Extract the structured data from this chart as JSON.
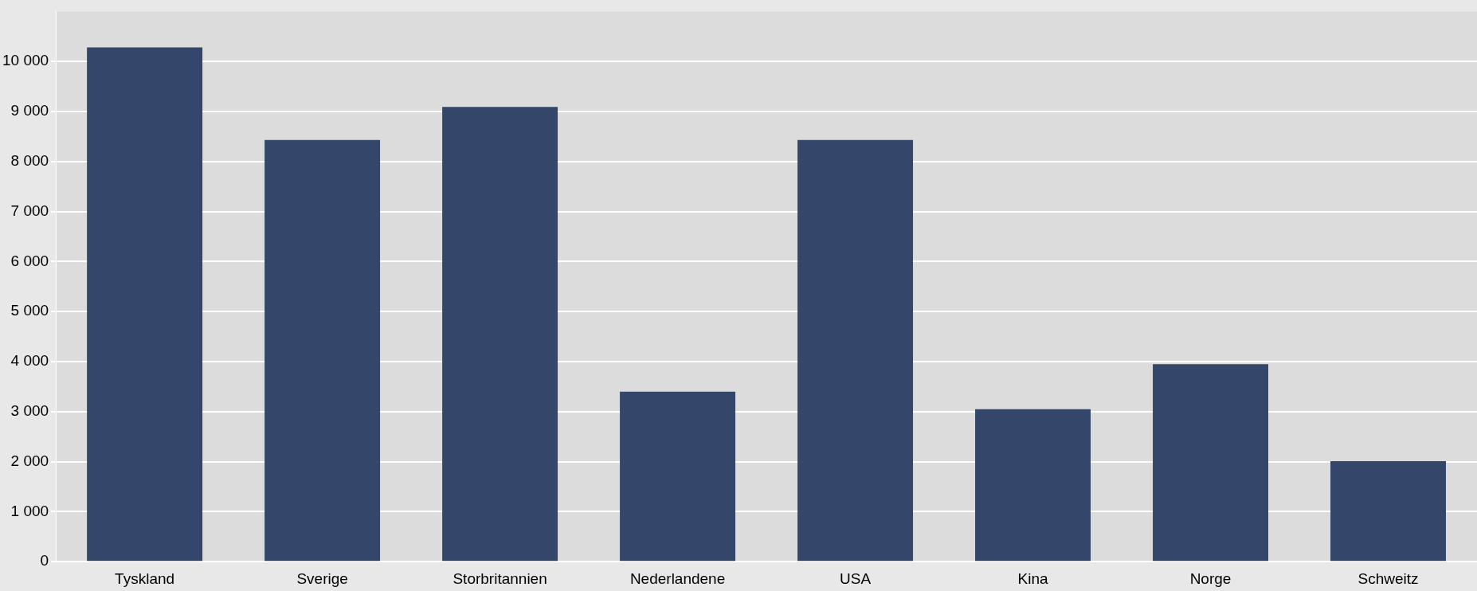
{
  "chart_data": {
    "type": "bar",
    "categories": [
      "Tyskland",
      "Sverige",
      "Storbritannien",
      "Nederlandene",
      "USA",
      "Kina",
      "Norge",
      "Schweitz"
    ],
    "values": [
      10280,
      8430,
      9090,
      3400,
      8430,
      3050,
      3950,
      2010
    ],
    "color": "#34466a",
    "ylim": [
      0,
      11000
    ],
    "yticks": [
      {
        "value": 0,
        "label": "0"
      },
      {
        "value": 1000,
        "label": "1 000"
      },
      {
        "value": 2000,
        "label": "2 000"
      },
      {
        "value": 3000,
        "label": "3 000"
      },
      {
        "value": 4000,
        "label": "4 000"
      },
      {
        "value": 5000,
        "label": "5 000"
      },
      {
        "value": 6000,
        "label": "6 000"
      },
      {
        "value": 7000,
        "label": "7 000"
      },
      {
        "value": 8000,
        "label": "8 000"
      },
      {
        "value": 9000,
        "label": "9 000"
      },
      {
        "value": 10000,
        "label": "10 000"
      }
    ],
    "grid": "y",
    "legend": false
  }
}
